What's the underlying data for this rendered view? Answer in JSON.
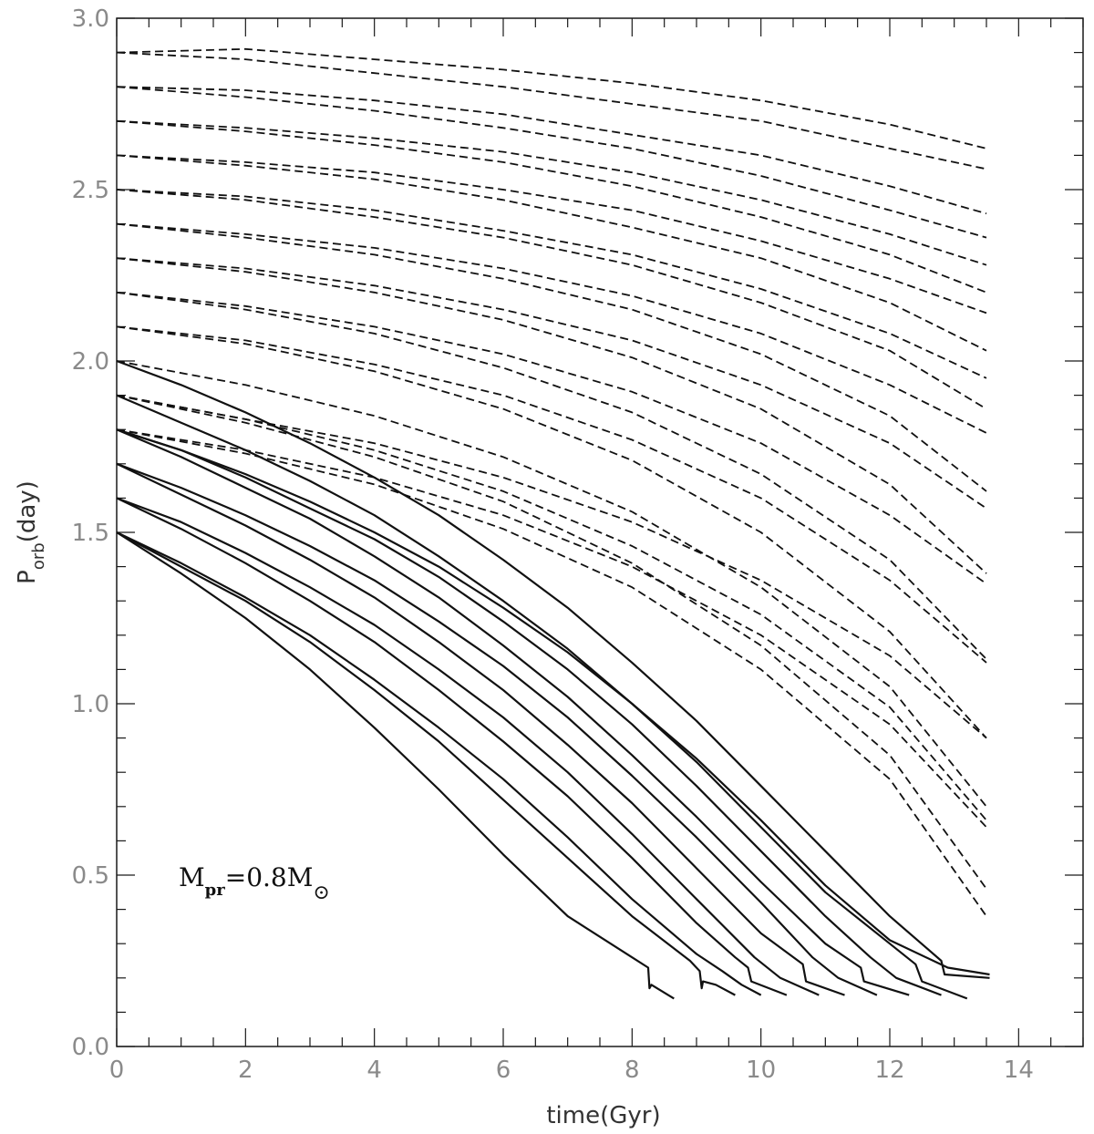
{
  "chart_data": {
    "type": "line",
    "xlabel": "time(Gyr)",
    "ylabel": {
      "main": "P",
      "sub": "orb",
      "rest": "(day)"
    },
    "xlim": [
      0,
      15
    ],
    "ylim": [
      0,
      3
    ],
    "x_ticks": [
      0,
      2,
      4,
      6,
      8,
      10,
      12,
      14
    ],
    "y_ticks": [
      0.0,
      0.5,
      1.0,
      1.5,
      2.0,
      2.5,
      3.0
    ],
    "x_tick_labels": [
      "0",
      "2",
      "4",
      "6",
      "8",
      "10",
      "12",
      "14"
    ],
    "y_tick_labels": [
      "0.0",
      "0.5",
      "1.0",
      "1.5",
      "2.0",
      "2.5",
      "3.0"
    ],
    "grid": false,
    "annotation": {
      "main": "M",
      "sub1": "pr",
      "mid": "=0.8M",
      "sun": "⊙"
    },
    "series": [
      {
        "style": "solid",
        "x": [
          0,
          1,
          2,
          3,
          4,
          5,
          6,
          7,
          8,
          8.25,
          8.27,
          8.3,
          8.65
        ],
        "y": [
          1.5,
          1.38,
          1.25,
          1.1,
          0.93,
          0.75,
          0.56,
          0.38,
          0.26,
          0.23,
          0.17,
          0.18,
          0.14
        ]
      },
      {
        "style": "solid",
        "x": [
          0,
          1,
          2,
          3,
          4,
          5,
          6,
          7,
          8,
          8.9,
          9.05,
          9.08,
          9.1,
          9.3,
          9.6
        ],
        "y": [
          1.5,
          1.4,
          1.3,
          1.18,
          1.04,
          0.89,
          0.72,
          0.55,
          0.38,
          0.25,
          0.22,
          0.17,
          0.19,
          0.18,
          0.15
        ]
      },
      {
        "style": "solid",
        "x": [
          0,
          1,
          2,
          3,
          4,
          5,
          6,
          7,
          8,
          9,
          9.4,
          9.7,
          10.0
        ],
        "y": [
          1.5,
          1.41,
          1.31,
          1.2,
          1.07,
          0.93,
          0.78,
          0.61,
          0.43,
          0.27,
          0.22,
          0.18,
          0.15
        ]
      },
      {
        "style": "solid",
        "x": [
          0,
          1,
          2,
          3,
          4,
          5,
          6,
          7,
          8,
          9,
          9.6,
          9.8,
          9.85,
          10.4
        ],
        "y": [
          1.6,
          1.51,
          1.41,
          1.3,
          1.18,
          1.04,
          0.89,
          0.73,
          0.55,
          0.36,
          0.26,
          0.23,
          0.19,
          0.15
        ]
      },
      {
        "style": "solid",
        "x": [
          0,
          1,
          2,
          3,
          4,
          5,
          6,
          7,
          8,
          9,
          9.9,
          10.3,
          10.9
        ],
        "y": [
          1.6,
          1.53,
          1.44,
          1.34,
          1.23,
          1.1,
          0.96,
          0.8,
          0.62,
          0.43,
          0.26,
          0.2,
          0.15
        ]
      },
      {
        "style": "solid",
        "x": [
          0,
          1,
          2,
          3,
          4,
          5,
          6,
          7,
          8,
          9,
          10,
          10.65,
          10.7,
          11.3
        ],
        "y": [
          1.7,
          1.61,
          1.52,
          1.42,
          1.31,
          1.18,
          1.04,
          0.88,
          0.71,
          0.52,
          0.33,
          0.24,
          0.19,
          0.15
        ]
      },
      {
        "style": "solid",
        "x": [
          0,
          1,
          2,
          3,
          4,
          5,
          6,
          7,
          8,
          9,
          10,
          10.8,
          11.2,
          11.8
        ],
        "y": [
          1.7,
          1.63,
          1.55,
          1.46,
          1.36,
          1.24,
          1.11,
          0.96,
          0.79,
          0.61,
          0.42,
          0.26,
          0.2,
          0.15
        ]
      },
      {
        "style": "solid",
        "x": [
          0,
          1,
          2,
          3,
          4,
          5,
          6,
          7,
          8,
          9,
          10,
          11,
          11.55,
          11.6,
          12.3
        ],
        "y": [
          1.8,
          1.72,
          1.63,
          1.54,
          1.43,
          1.31,
          1.17,
          1.02,
          0.85,
          0.67,
          0.48,
          0.3,
          0.23,
          0.19,
          0.15
        ]
      },
      {
        "style": "solid",
        "x": [
          0,
          1,
          2,
          3,
          4,
          5,
          6,
          7,
          8,
          9,
          10,
          11,
          11.7,
          12.1,
          12.8
        ],
        "y": [
          1.8,
          1.74,
          1.66,
          1.57,
          1.48,
          1.37,
          1.24,
          1.1,
          0.94,
          0.76,
          0.57,
          0.38,
          0.26,
          0.2,
          0.15
        ]
      },
      {
        "style": "solid",
        "x": [
          0,
          1,
          2,
          3,
          4,
          5,
          6,
          7,
          8,
          9,
          10,
          11,
          12,
          12.4,
          12.5,
          13.2
        ],
        "y": [
          1.9,
          1.82,
          1.74,
          1.65,
          1.55,
          1.43,
          1.3,
          1.16,
          1.0,
          0.83,
          0.64,
          0.45,
          0.3,
          0.24,
          0.19,
          0.14
        ]
      },
      {
        "style": "solid",
        "x": [
          0,
          1,
          2,
          3,
          4,
          5,
          6,
          7,
          8,
          9,
          10,
          11,
          12,
          12.8,
          12.85,
          13.55
        ],
        "y": [
          2.0,
          1.93,
          1.85,
          1.76,
          1.66,
          1.55,
          1.42,
          1.28,
          1.12,
          0.95,
          0.76,
          0.57,
          0.38,
          0.25,
          0.21,
          0.2
        ]
      },
      {
        "style": "solid",
        "x": [
          0,
          1,
          2,
          3,
          4,
          5,
          6,
          7,
          8,
          9,
          10,
          11,
          12,
          12.9,
          13.55
        ],
        "y": [
          1.8,
          1.74,
          1.67,
          1.59,
          1.5,
          1.4,
          1.28,
          1.15,
          1.0,
          0.84,
          0.66,
          0.47,
          0.31,
          0.23,
          0.21
        ]
      },
      {
        "style": "dashed",
        "x": [
          0,
          2,
          4,
          6,
          8,
          10,
          12,
          13.5
        ],
        "y": [
          2.9,
          2.91,
          2.88,
          2.85,
          2.81,
          2.76,
          2.69,
          2.62
        ]
      },
      {
        "style": "dashed",
        "x": [
          0,
          2,
          4,
          6,
          8,
          10,
          12,
          13.5
        ],
        "y": [
          2.9,
          2.88,
          2.84,
          2.8,
          2.75,
          2.7,
          2.62,
          2.56
        ]
      },
      {
        "style": "dashed",
        "x": [
          0,
          2,
          4,
          6,
          8,
          10,
          12,
          13.5
        ],
        "y": [
          2.8,
          2.79,
          2.76,
          2.72,
          2.66,
          2.6,
          2.51,
          2.43
        ]
      },
      {
        "style": "dashed",
        "x": [
          0,
          2,
          4,
          6,
          8,
          10,
          12,
          13.5
        ],
        "y": [
          2.8,
          2.77,
          2.73,
          2.68,
          2.62,
          2.54,
          2.44,
          2.36
        ]
      },
      {
        "style": "dashed",
        "x": [
          0,
          2,
          4,
          6,
          8,
          10,
          12,
          13.5
        ],
        "y": [
          2.7,
          2.68,
          2.65,
          2.61,
          2.55,
          2.47,
          2.37,
          2.28
        ]
      },
      {
        "style": "dashed",
        "x": [
          0,
          2,
          4,
          6,
          8,
          10,
          12,
          13.5
        ],
        "y": [
          2.7,
          2.67,
          2.63,
          2.58,
          2.51,
          2.42,
          2.31,
          2.2
        ]
      },
      {
        "style": "dashed",
        "x": [
          0,
          2,
          4,
          6,
          8,
          10,
          12,
          13.5
        ],
        "y": [
          2.6,
          2.58,
          2.55,
          2.5,
          2.44,
          2.35,
          2.24,
          2.14
        ]
      },
      {
        "style": "dashed",
        "x": [
          0,
          2,
          4,
          6,
          8,
          10,
          12,
          13.5
        ],
        "y": [
          2.6,
          2.57,
          2.53,
          2.47,
          2.39,
          2.3,
          2.17,
          2.03
        ]
      },
      {
        "style": "dashed",
        "x": [
          0,
          2,
          4,
          6,
          8,
          10,
          12,
          13.5
        ],
        "y": [
          2.5,
          2.48,
          2.44,
          2.38,
          2.31,
          2.21,
          2.08,
          1.95
        ]
      },
      {
        "style": "dashed",
        "x": [
          0,
          2,
          4,
          6,
          8,
          10,
          12,
          13.5
        ],
        "y": [
          2.5,
          2.47,
          2.42,
          2.36,
          2.28,
          2.17,
          2.03,
          1.86
        ]
      },
      {
        "style": "dashed",
        "x": [
          0,
          2,
          4,
          6,
          8,
          10,
          12,
          13.5
        ],
        "y": [
          2.4,
          2.37,
          2.33,
          2.27,
          2.19,
          2.08,
          1.93,
          1.79
        ]
      },
      {
        "style": "dashed",
        "x": [
          0,
          2,
          4,
          6,
          8,
          10,
          12,
          13.5
        ],
        "y": [
          2.4,
          2.36,
          2.31,
          2.24,
          2.15,
          2.02,
          1.84,
          1.62
        ]
      },
      {
        "style": "dashed",
        "x": [
          0,
          2,
          4,
          6,
          8,
          10,
          12,
          13.5
        ],
        "y": [
          2.3,
          2.27,
          2.22,
          2.15,
          2.06,
          1.93,
          1.76,
          1.57
        ]
      },
      {
        "style": "dashed",
        "x": [
          0,
          2,
          4,
          6,
          8,
          10,
          12,
          13.5
        ],
        "y": [
          2.3,
          2.26,
          2.2,
          2.12,
          2.01,
          1.86,
          1.64,
          1.38
        ]
      },
      {
        "style": "dashed",
        "x": [
          0,
          2,
          4,
          6,
          8,
          10,
          12,
          13.5
        ],
        "y": [
          2.2,
          2.16,
          2.1,
          2.02,
          1.91,
          1.76,
          1.55,
          1.35
        ]
      },
      {
        "style": "dashed",
        "x": [
          0,
          2,
          4,
          6,
          8,
          10,
          12,
          13.5
        ],
        "y": [
          2.2,
          2.15,
          2.08,
          1.98,
          1.85,
          1.67,
          1.42,
          1.13
        ]
      },
      {
        "style": "dashed",
        "x": [
          0,
          2,
          4,
          6,
          8,
          10,
          12,
          13.5
        ],
        "y": [
          2.1,
          2.06,
          1.99,
          1.9,
          1.77,
          1.6,
          1.36,
          1.12
        ]
      },
      {
        "style": "dashed",
        "x": [
          0,
          2,
          4,
          6,
          8,
          10,
          12,
          13.5
        ],
        "y": [
          2.1,
          2.05,
          1.97,
          1.86,
          1.71,
          1.5,
          1.21,
          0.9
        ]
      },
      {
        "style": "dashed",
        "x": [
          0,
          2,
          4,
          6,
          8,
          10,
          12,
          13.5
        ],
        "y": [
          1.9,
          1.83,
          1.76,
          1.66,
          1.53,
          1.36,
          1.14,
          0.9
        ]
      },
      {
        "style": "dashed",
        "x": [
          0,
          2,
          4,
          6,
          8,
          10,
          12,
          13.5
        ],
        "y": [
          1.9,
          1.83,
          1.74,
          1.62,
          1.46,
          1.26,
          0.99,
          0.66
        ]
      },
      {
        "style": "dashed",
        "x": [
          0,
          2,
          4,
          6,
          8,
          10,
          12,
          13.5
        ],
        "y": [
          1.8,
          1.74,
          1.66,
          1.55,
          1.4,
          1.2,
          0.94,
          0.64
        ]
      },
      {
        "style": "dashed",
        "x": [
          0,
          2,
          4,
          6,
          8,
          10,
          12,
          13.5
        ],
        "y": [
          1.8,
          1.73,
          1.64,
          1.51,
          1.34,
          1.1,
          0.78,
          0.38
        ]
      },
      {
        "style": "dashed",
        "x": [
          0,
          2,
          4,
          6,
          8,
          10,
          12,
          13.5
        ],
        "y": [
          1.9,
          1.82,
          1.72,
          1.59,
          1.41,
          1.17,
          0.85,
          0.46
        ]
      },
      {
        "style": "dashed",
        "x": [
          0,
          2,
          4,
          6,
          8,
          10,
          12,
          13.5
        ],
        "y": [
          2.0,
          1.93,
          1.84,
          1.72,
          1.56,
          1.34,
          1.05,
          0.7
        ]
      }
    ]
  }
}
